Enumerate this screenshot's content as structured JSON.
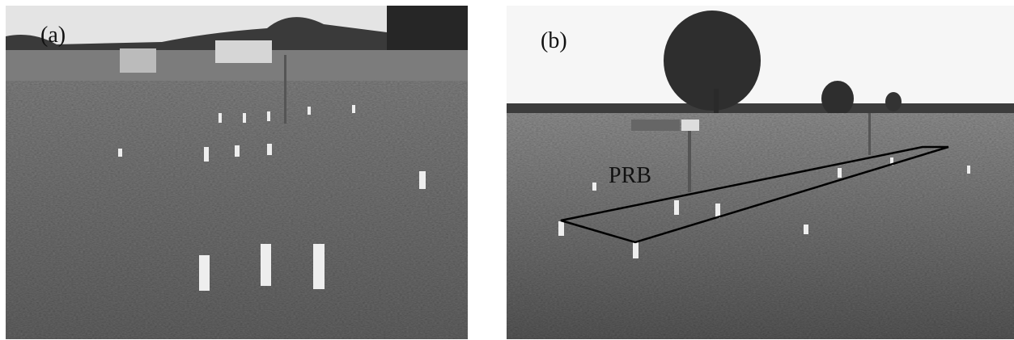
{
  "panels": [
    {
      "label": "(a)"
    },
    {
      "label": "(b)",
      "annotation": "PRB"
    }
  ]
}
